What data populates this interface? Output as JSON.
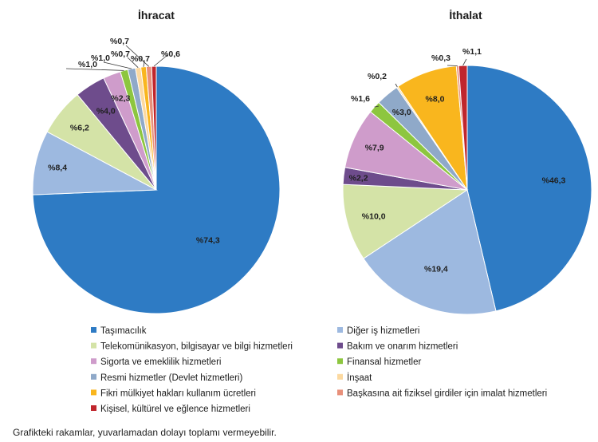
{
  "note": "Grafikteki rakamlar, yuvarlamadan dolayı toplamı vermeyebilir.",
  "chart_data": {
    "type": "pie",
    "unit": "%",
    "categories": [
      "Taşımacılık",
      "Diğer iş hizmetleri",
      "Telekomünikasyon, bilgisayar ve bilgi hizmetleri",
      "Bakım ve onarım hizmetleri",
      "Sigorta ve emeklilik hizmetleri",
      "Finansal hizmetler",
      "Resmi hizmetler (Devlet hizmetleri)",
      "İnşaat",
      "Fikri mülkiyet hakları kullanım ücretleri",
      "Başkasına ait fiziksel girdiler için imalat hizmetleri",
      "Kişisel, kültürel ve eğlence hizmetleri"
    ],
    "colors": [
      "#2E7BC4",
      "#9DB9E0",
      "#D4E3A7",
      "#6E4C8C",
      "#CF9CCB",
      "#8DC63F",
      "#8FA9C9",
      "#FCD9A0",
      "#F9B61E",
      "#E8907A",
      "#C0262D"
    ],
    "pies": [
      {
        "title": "İhracat",
        "values": [
          74.3,
          8.4,
          6.2,
          4.0,
          2.3,
          1.0,
          1.0,
          0.7,
          0.7,
          0.7,
          0.6
        ],
        "labels": [
          "%74,3",
          "%8,4",
          "%6,2",
          "%4,0",
          "%2,3",
          "%1,0",
          "%1,0",
          "%0,7",
          "%0,7",
          "%0,7",
          "%0,6"
        ]
      },
      {
        "title": "İthalat",
        "values": [
          46.3,
          19.4,
          10.0,
          2.2,
          7.9,
          1.6,
          3.0,
          0.2,
          8.0,
          0.3,
          1.1
        ],
        "labels": [
          "%46,3",
          "%19,4",
          "%10,0",
          "%2,2",
          "%7,9",
          "%1,6",
          "%3,0",
          "%0,2",
          "%8,0",
          "%0,3",
          "%1,1"
        ]
      }
    ],
    "legend": {
      "placement": "bottom",
      "columns": 2
    }
  }
}
